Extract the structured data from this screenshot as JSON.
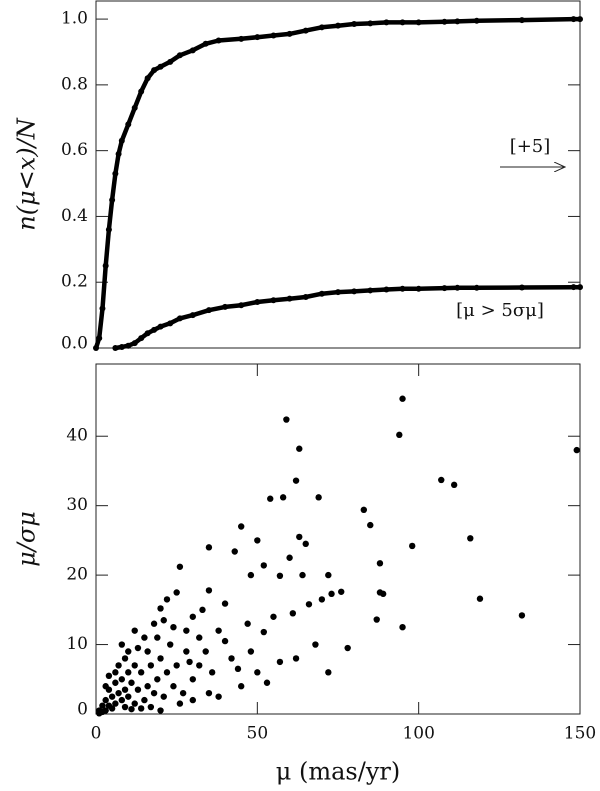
{
  "chart_data": [
    {
      "type": "line",
      "ylabel": "n(μ<x)/N",
      "xlim": [
        0,
        150
      ],
      "ylim": [
        0,
        1.055
      ],
      "yticks": [
        {
          "value": 0,
          "label": "0.0"
        },
        0.2,
        0.4,
        0.6,
        0.8,
        {
          "value": 1,
          "label": "1.0"
        }
      ],
      "annotations": [
        "[+5]",
        "[μ > 5σμ]"
      ],
      "series": [
        {
          "color": "#000000",
          "x": [
            0,
            1,
            2,
            3,
            4,
            5,
            6,
            7,
            8,
            10,
            12,
            14,
            16,
            18,
            20,
            23,
            26,
            30,
            34,
            38,
            45,
            50,
            55,
            60,
            65,
            70,
            75,
            80,
            85,
            90,
            95,
            100,
            108,
            112,
            118,
            132,
            148,
            150
          ],
          "values": [
            0,
            0.03,
            0.12,
            0.25,
            0.36,
            0.45,
            0.53,
            0.59,
            0.63,
            0.68,
            0.73,
            0.78,
            0.82,
            0.845,
            0.855,
            0.87,
            0.89,
            0.905,
            0.925,
            0.935,
            0.94,
            0.945,
            0.95,
            0.955,
            0.965,
            0.975,
            0.98,
            0.985,
            0.987,
            0.99,
            0.99,
            0.99,
            0.992,
            0.993,
            0.995,
            0.997,
            1.0,
            1.0
          ]
        },
        {
          "color": "#000000",
          "x": [
            6,
            8,
            10,
            12,
            14,
            16,
            18,
            20,
            23,
            26,
            30,
            35,
            40,
            45,
            50,
            55,
            60,
            65,
            70,
            75,
            80,
            85,
            90,
            95,
            100,
            108,
            112,
            118,
            132,
            148,
            150
          ],
          "values": [
            0,
            0.003,
            0.007,
            0.015,
            0.03,
            0.045,
            0.055,
            0.065,
            0.075,
            0.09,
            0.1,
            0.115,
            0.125,
            0.13,
            0.14,
            0.145,
            0.15,
            0.155,
            0.165,
            0.17,
            0.172,
            0.175,
            0.178,
            0.18,
            0.18,
            0.182,
            0.183,
            0.183,
            0.184,
            0.185,
            0.185
          ]
        }
      ]
    },
    {
      "type": "scatter",
      "xlabel": "μ (mas/yr)",
      "ylabel": "μ/σμ",
      "xlim": [
        0,
        150
      ],
      "ylim": [
        0,
        50.4
      ],
      "xticks": [
        0,
        50,
        100,
        150
      ],
      "yticks": [
        0,
        10,
        20,
        30,
        40
      ],
      "color": "#000000",
      "x": [
        59,
        95,
        94,
        149,
        63,
        107,
        111,
        62,
        54,
        58,
        69,
        83,
        85,
        45,
        63,
        65,
        50,
        116,
        98,
        35,
        43,
        60,
        88,
        52,
        26,
        48,
        57,
        64,
        72,
        119,
        132,
        95,
        87,
        88,
        89,
        76,
        73,
        70,
        66,
        61,
        55,
        52,
        47,
        40,
        38,
        35,
        33,
        30,
        28,
        25,
        22,
        20,
        18,
        15,
        12,
        10,
        8,
        62,
        68,
        72,
        78,
        57,
        50,
        45,
        42,
        40,
        36,
        34,
        32,
        30,
        28,
        27,
        25,
        24,
        23,
        22,
        21,
        20,
        19,
        18,
        17,
        16,
        15,
        14,
        13,
        12,
        12,
        11,
        10,
        10,
        9,
        9,
        8,
        8,
        7,
        7,
        6,
        6,
        5,
        5,
        4,
        4,
        3,
        3,
        2,
        2,
        1,
        1,
        16,
        19,
        26,
        30,
        35,
        38,
        14,
        11,
        17,
        9,
        6,
        13,
        20,
        4,
        24,
        21,
        44,
        48,
        53,
        32,
        29,
        3
      ],
      "values": [
        42.4,
        45.4,
        40.2,
        38,
        38.2,
        33.7,
        33,
        33.6,
        31,
        31.2,
        31.2,
        29.4,
        27.2,
        27,
        25.5,
        24.5,
        25,
        25.3,
        24.2,
        24,
        23.4,
        22.5,
        21.7,
        21.4,
        21.2,
        20,
        19.9,
        20,
        20,
        16.6,
        14.2,
        12.5,
        13.6,
        17.5,
        17.3,
        17.6,
        17.3,
        16.5,
        15.8,
        14.5,
        14,
        11.8,
        13,
        15.9,
        12,
        17.8,
        15,
        14,
        12,
        17.5,
        16.5,
        15.2,
        13,
        11,
        12,
        9,
        10,
        8,
        10,
        6,
        9.5,
        7.5,
        6,
        4,
        8,
        10.5,
        6,
        9,
        7,
        5,
        9,
        3,
        7,
        4,
        10,
        6,
        2.5,
        8,
        5,
        3,
        7,
        4,
        2,
        6,
        3.5,
        1.5,
        7,
        4.5,
        2.5,
        6,
        3.5,
        1,
        5,
        2,
        3,
        7,
        1.5,
        4.5,
        2.5,
        0.8,
        3.5,
        1.2,
        2,
        0.5,
        1.2,
        0.3,
        0.5,
        0.1,
        9,
        11,
        1.5,
        2,
        3,
        2.5,
        0.8,
        0.7,
        1,
        8,
        6,
        9.5,
        0.5,
        5.5,
        12.5,
        13.5,
        6.5,
        9,
        4.5,
        11,
        7.5,
        4
      ]
    }
  ]
}
